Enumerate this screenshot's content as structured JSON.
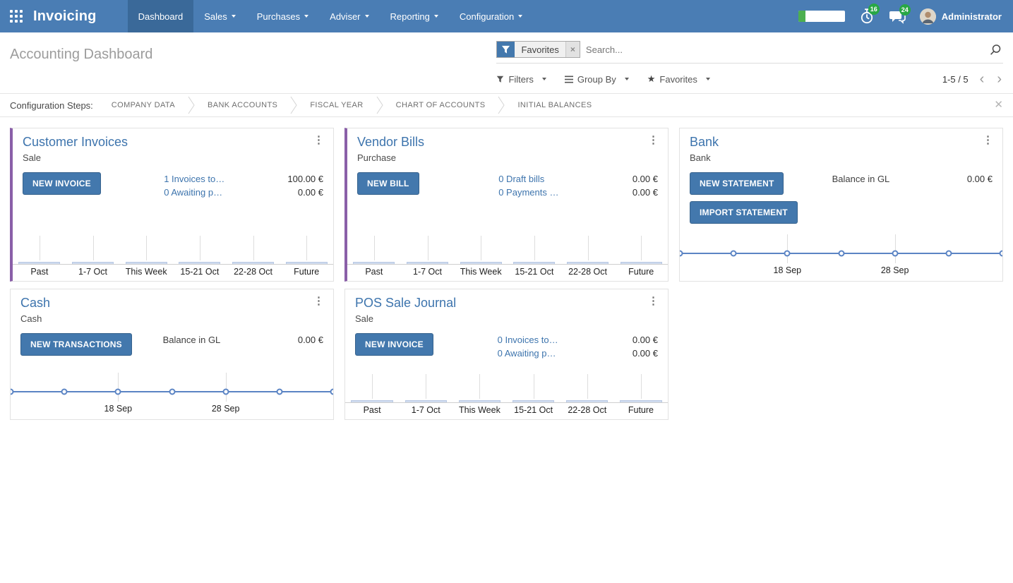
{
  "colors": {
    "navbar": "#4a7db4",
    "navbar_active": "#3a6999",
    "primary": "#4378ad",
    "link": "#3d74ad",
    "accent_stripe": "#8a5fa8",
    "badge": "#28a745",
    "progress_fill": "#4caf50",
    "chart_line": "#5b84c4",
    "chart_bar_fill": "#cfdbee",
    "chart_bar_border": "#b9c9e4"
  },
  "navbar": {
    "brand": "Invoicing",
    "items": [
      {
        "label": "Dashboard",
        "active": true,
        "dropdown": false
      },
      {
        "label": "Sales",
        "active": false,
        "dropdown": true
      },
      {
        "label": "Purchases",
        "active": false,
        "dropdown": true
      },
      {
        "label": "Adviser",
        "active": false,
        "dropdown": true
      },
      {
        "label": "Reporting",
        "active": false,
        "dropdown": true
      },
      {
        "label": "Configuration",
        "active": false,
        "dropdown": true
      }
    ],
    "timer_badge": "16",
    "chat_badge": "24",
    "user": "Administrator"
  },
  "control_panel": {
    "title": "Accounting Dashboard",
    "search": {
      "facet": "Favorites",
      "placeholder": "Search..."
    },
    "buttons": {
      "filters": "Filters",
      "group_by": "Group By",
      "favorites": "Favorites"
    },
    "pager": "1-5 / 5"
  },
  "config_steps": {
    "label": "Configuration Steps:",
    "steps": [
      "COMPANY DATA",
      "BANK ACCOUNTS",
      "FISCAL YEAR",
      "CHART OF ACCOUNTS",
      "INITIAL BALANCES"
    ]
  },
  "cards": [
    {
      "title": "Customer Invoices",
      "subtitle": "Sale",
      "accent": true,
      "buttons": [
        "NEW INVOICE"
      ],
      "rows": [
        {
          "link": "1 Invoices to…",
          "amount": "100.00 €"
        },
        {
          "link": "0 Awaiting p…",
          "amount": "0.00 €"
        }
      ],
      "chart": 0
    },
    {
      "title": "Vendor Bills",
      "subtitle": "Purchase",
      "accent": true,
      "buttons": [
        "NEW BILL"
      ],
      "rows": [
        {
          "link": "0 Draft bills",
          "amount": "0.00 €"
        },
        {
          "link": "0 Payments …",
          "amount": "0.00 €"
        }
      ],
      "chart": 1
    },
    {
      "title": "Bank",
      "subtitle": "Bank",
      "accent": false,
      "buttons": [
        "NEW STATEMENT",
        "IMPORT STATEMENT"
      ],
      "rows": [
        {
          "label": "Balance in GL",
          "amount": "0.00 €"
        }
      ],
      "chart": 2
    },
    {
      "title": "Cash",
      "subtitle": "Cash",
      "accent": false,
      "buttons": [
        "NEW TRANSACTIONS"
      ],
      "rows": [
        {
          "label": "Balance in GL",
          "amount": "0.00 €"
        }
      ],
      "chart": 3
    },
    {
      "title": "POS Sale Journal",
      "subtitle": "Sale",
      "accent": false,
      "buttons": [
        "NEW INVOICE"
      ],
      "rows": [
        {
          "link": "0 Invoices to…",
          "amount": "0.00 €"
        },
        {
          "link": "0 Awaiting p…",
          "amount": "0.00 €"
        }
      ],
      "chart": 4
    }
  ],
  "chart_data": [
    {
      "journal": "Customer Invoices",
      "type": "bar",
      "categories": [
        "Past",
        "1-7 Oct",
        "This Week",
        "15-21 Oct",
        "22-28 Oct",
        "Future"
      ],
      "values": [
        0,
        0,
        0,
        0,
        0,
        0
      ],
      "ylim": [
        0,
        1
      ],
      "grid": true,
      "legend": "none"
    },
    {
      "journal": "Vendor Bills",
      "type": "bar",
      "categories": [
        "Past",
        "1-7 Oct",
        "This Week",
        "15-21 Oct",
        "22-28 Oct",
        "Future"
      ],
      "values": [
        0,
        0,
        0,
        0,
        0,
        0
      ],
      "ylim": [
        0,
        1
      ],
      "grid": true,
      "legend": "none"
    },
    {
      "journal": "Bank",
      "type": "line",
      "values": [
        0,
        0,
        0,
        0,
        0,
        0,
        0
      ],
      "tick_labels": [
        {
          "index": 2,
          "label": "18 Sep"
        },
        {
          "index": 4,
          "label": "28 Sep"
        }
      ],
      "ylim": [
        0,
        1
      ],
      "grid": true,
      "legend": "none",
      "marker": "circle"
    },
    {
      "journal": "Cash",
      "type": "line",
      "values": [
        0,
        0,
        0,
        0,
        0,
        0,
        0
      ],
      "tick_labels": [
        {
          "index": 2,
          "label": "18 Sep"
        },
        {
          "index": 4,
          "label": "28 Sep"
        }
      ],
      "ylim": [
        0,
        1
      ],
      "grid": true,
      "legend": "none",
      "marker": "circle"
    },
    {
      "journal": "POS Sale Journal",
      "type": "bar",
      "categories": [
        "Past",
        "1-7 Oct",
        "This Week",
        "15-21 Oct",
        "22-28 Oct",
        "Future"
      ],
      "values": [
        0,
        0,
        0,
        0,
        0,
        0
      ],
      "ylim": [
        0,
        1
      ],
      "grid": true,
      "legend": "none"
    }
  ]
}
